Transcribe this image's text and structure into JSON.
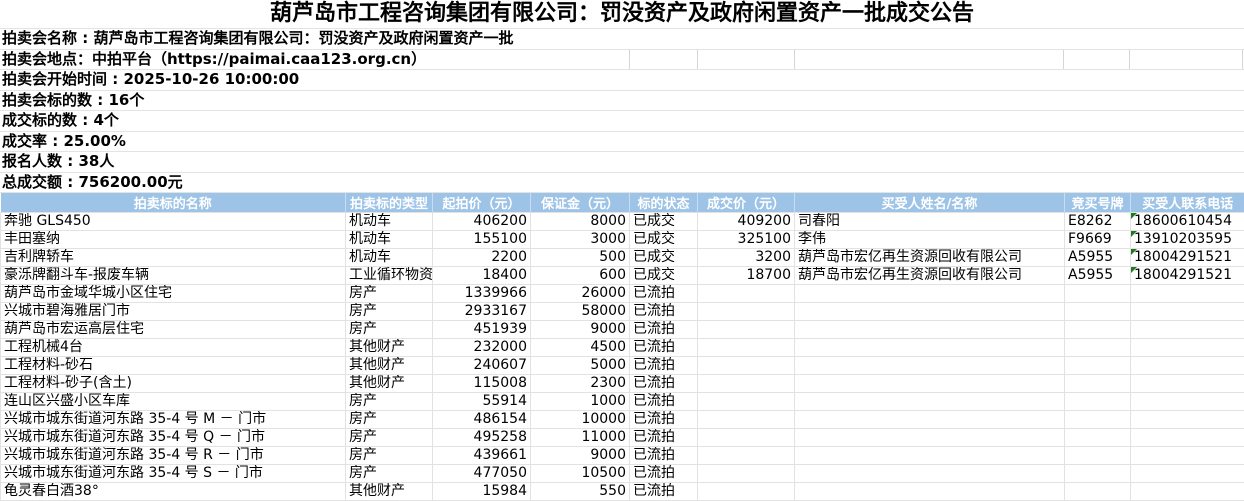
{
  "title": "葫芦岛市工程咨询集团有限公司：罚没资产及政府闲置资产一批成交公告",
  "info_rows": [
    "拍卖会名称 : 葫芦岛市工程咨询集团有限公司：罚没资产及政府闲置资产一批",
    "拍卖会地点：中拍平台（https://paimai.caa123.org.cn）",
    "拍卖会开始时间 : 2025-10-26 10:00:00",
    "拍卖会标的数 : 16个",
    "成交标的数 : 4个",
    "成交率 : 25.00%",
    "报名人数 : 38人",
    "总成交额 : 756200.00元"
  ],
  "table": {
    "headers": [
      "拍卖标的名称",
      "拍卖标的类型",
      "起拍价（元）",
      "保证金（元）",
      "标的状态",
      "成交价（元）",
      "买受人姓名/名称",
      "竞买号牌",
      "买受人联系电话"
    ],
    "rows": [
      [
        "奔驰 GLS450",
        "机动车",
        "406200",
        "8000",
        "已成交",
        "409200",
        "司春阳",
        "E8262",
        "18600610454"
      ],
      [
        "丰田塞纳",
        "机动车",
        "155100",
        "3000",
        "已成交",
        "325100",
        "李伟",
        "F9669",
        "13910203595"
      ],
      [
        "吉利牌轿车",
        "机动车",
        "2200",
        "500",
        "已成交",
        "3200",
        "葫芦岛市宏亿再生资源回收有限公司",
        "A5955",
        "18004291521"
      ],
      [
        "豪泺牌翻斗车-报废车辆",
        "工业循环物资",
        "18400",
        "600",
        "已成交",
        "18700",
        "葫芦岛市宏亿再生资源回收有限公司",
        "A5955",
        "18004291521"
      ],
      [
        "葫芦岛市金域华城小区住宅",
        "房产",
        "1339966",
        "26000",
        "已流拍",
        "",
        "",
        "",
        ""
      ],
      [
        "兴城市碧海雅居门市",
        "房产",
        "2933167",
        "58000",
        "已流拍",
        "",
        "",
        "",
        ""
      ],
      [
        "葫芦岛市宏运高层住宅",
        "房产",
        "451939",
        "9000",
        "已流拍",
        "",
        "",
        "",
        ""
      ],
      [
        "工程机械4台",
        "其他财产",
        "232000",
        "4500",
        "已流拍",
        "",
        "",
        "",
        ""
      ],
      [
        "工程材料-砂石",
        "其他财产",
        "240607",
        "5000",
        "已流拍",
        "",
        "",
        "",
        ""
      ],
      [
        "工程材料-砂子(含土)",
        "其他财产",
        "115008",
        "2300",
        "已流拍",
        "",
        "",
        "",
        ""
      ],
      [
        "连山区兴盛小区车库",
        "房产",
        "55914",
        "1000",
        "已流拍",
        "",
        "",
        "",
        ""
      ],
      [
        "兴城市城东街道河东路 35-4 号 M － 门市",
        "房产",
        "486154",
        "10000",
        "已流拍",
        "",
        "",
        "",
        ""
      ],
      [
        "兴城市城东街道河东路 35-4 号 Q － 门市",
        "房产",
        "495258",
        "11000",
        "已流拍",
        "",
        "",
        "",
        ""
      ],
      [
        "兴城市城东街道河东路 35-4 号 R － 门市",
        "房产",
        "439661",
        "9000",
        "已流拍",
        "",
        "",
        "",
        ""
      ],
      [
        "兴城市城东街道河东路 35-4 号 S － 门市",
        "房产",
        "477050",
        "10500",
        "已流拍",
        "",
        "",
        "",
        ""
      ],
      [
        "龟灵春白酒38°",
        "其他财产",
        "15984",
        "550",
        "已流拍",
        "",
        "",
        "",
        ""
      ]
    ]
  },
  "colors": {
    "header_bg": "#9DC3E6",
    "header_text": "#FFFFFF",
    "grid_line": "#E2E2E2",
    "text_flag_green": "#1F7A1F"
  }
}
